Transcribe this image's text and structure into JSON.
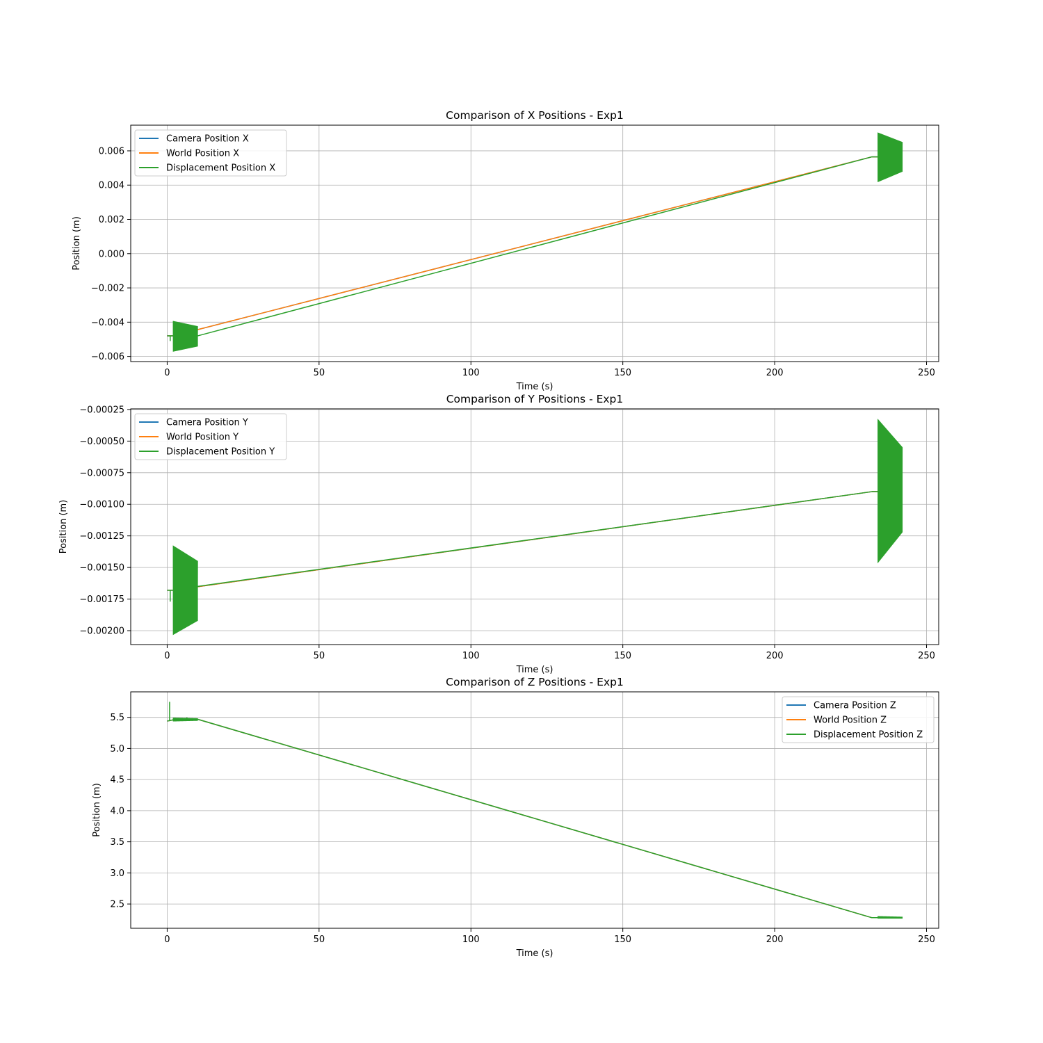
{
  "chart_data": [
    {
      "type": "line",
      "title": "Comparison of X Positions - Exp1",
      "xlabel": "Time (s)",
      "ylabel": "Position (m)",
      "xlim": [
        -12,
        254
      ],
      "ylim": [
        -0.0063,
        0.0075
      ],
      "xticks": [
        0,
        50,
        100,
        150,
        200,
        250
      ],
      "xtick_labels": [
        "0",
        "50",
        "100",
        "150",
        "200",
        "250"
      ],
      "yticks": [
        -0.006,
        -0.004,
        -0.002,
        0.0,
        0.002,
        0.004,
        0.006
      ],
      "ytick_labels": [
        "−0.006",
        "−0.004",
        "−0.002",
        "0.000",
        "0.002",
        "0.004",
        "0.006"
      ],
      "grid": true,
      "legend_position": "upper-left",
      "series": [
        {
          "name": "Camera Position X",
          "color": "#1f77b4",
          "x": [
            0,
            2,
            232,
            234,
            242
          ],
          "y": [
            -0.0048,
            -0.0048,
            0.00565,
            0.00565,
            0.00565
          ]
        },
        {
          "name": "World Position X",
          "color": "#ff7f0e",
          "x": [
            0,
            2,
            232,
            234,
            242
          ],
          "y": [
            -0.0048,
            -0.0048,
            0.00565,
            0.00565,
            0.00565
          ]
        },
        {
          "name": "Displacement Position X",
          "color": "#2ca02c",
          "x": [
            0,
            2,
            10,
            232,
            234,
            242
          ],
          "y": [
            -0.0048,
            -0.0048,
            -0.0048,
            0.00565,
            0.00565,
            0.00565
          ],
          "oscillations": [
            {
              "t_start": 2,
              "t_end": 10,
              "upper": [
                -0.00395,
                -0.00425
              ],
              "lower": [
                -0.0057,
                -0.0054
              ]
            },
            {
              "t_start": 234,
              "t_end": 242,
              "upper": [
                0.00705,
                0.0065
              ],
              "lower": [
                0.0042,
                0.0048
              ]
            }
          ],
          "spikes": [
            {
              "t": 1,
              "low": -0.0051,
              "high": -0.0048
            }
          ]
        }
      ]
    },
    {
      "type": "line",
      "title": "Comparison of Y Positions - Exp1",
      "xlabel": "Time (s)",
      "ylabel": "Position (m)",
      "xlim": [
        -12,
        254
      ],
      "ylim": [
        -0.00211,
        -0.000245
      ],
      "xticks": [
        0,
        50,
        100,
        150,
        200,
        250
      ],
      "xtick_labels": [
        "0",
        "50",
        "100",
        "150",
        "200",
        "250"
      ],
      "yticks": [
        -0.002,
        -0.00175,
        -0.0015,
        -0.00125,
        -0.001,
        -0.00075,
        -0.0005,
        -0.00025
      ],
      "ytick_labels": [
        "−0.00200",
        "−0.00175",
        "−0.00150",
        "−0.00125",
        "−0.00100",
        "−0.00075",
        "−0.00050",
        "−0.00025"
      ],
      "grid": true,
      "legend_position": "upper-left",
      "series": [
        {
          "name": "Camera Position Y",
          "color": "#1f77b4",
          "x": [
            0,
            2,
            232,
            234,
            242
          ],
          "y": [
            -0.00168,
            -0.00168,
            -0.0009,
            -0.0009,
            -0.0009
          ]
        },
        {
          "name": "World Position Y",
          "color": "#ff7f0e",
          "x": [
            0,
            2,
            232,
            234,
            242
          ],
          "y": [
            -0.00168,
            -0.00168,
            -0.0009,
            -0.0009,
            -0.0009
          ]
        },
        {
          "name": "Displacement Position Y",
          "color": "#2ca02c",
          "x": [
            0,
            2,
            10,
            232,
            234,
            242
          ],
          "y": [
            -0.00168,
            -0.00168,
            -0.00165,
            -0.0009,
            -0.0009,
            -0.0009
          ],
          "oscillations": [
            {
              "t_start": 2,
              "t_end": 10,
              "upper": [
                -0.00133,
                -0.00145
              ],
              "lower": [
                -0.00203,
                -0.00192
              ]
            },
            {
              "t_start": 234,
              "t_end": 242,
              "upper": [
                -0.00033,
                -0.00055
              ],
              "lower": [
                -0.00146,
                -0.00122
              ]
            }
          ],
          "spikes": [
            {
              "t": 1,
              "low": -0.00177,
              "high": -0.00168
            }
          ]
        }
      ]
    },
    {
      "type": "line",
      "title": "Comparison of Z Positions - Exp1",
      "xlabel": "Time (s)",
      "ylabel": "Position (m)",
      "xlim": [
        -12,
        254
      ],
      "ylim": [
        2.11,
        5.91
      ],
      "xticks": [
        0,
        50,
        100,
        150,
        200,
        250
      ],
      "xtick_labels": [
        "0",
        "50",
        "100",
        "150",
        "200",
        "250"
      ],
      "yticks": [
        2.5,
        3.0,
        3.5,
        4.0,
        4.5,
        5.0,
        5.5
      ],
      "ytick_labels": [
        "2.5",
        "3.0",
        "3.5",
        "4.0",
        "4.5",
        "5.0",
        "5.5"
      ],
      "grid": true,
      "legend_position": "upper-right",
      "series": [
        {
          "name": "Camera Position Z",
          "color": "#1f77b4",
          "x": [
            0,
            2,
            10,
            232,
            234,
            242
          ],
          "y": [
            5.44,
            5.46,
            5.47,
            2.28,
            2.28,
            2.28
          ]
        },
        {
          "name": "World Position Z",
          "color": "#ff7f0e",
          "x": [
            0,
            2,
            10,
            232,
            234,
            242
          ],
          "y": [
            5.44,
            5.46,
            5.47,
            2.28,
            2.28,
            2.28
          ]
        },
        {
          "name": "Displacement Position Z",
          "color": "#2ca02c",
          "x": [
            0,
            2,
            10,
            232,
            234,
            242
          ],
          "y": [
            5.44,
            5.46,
            5.47,
            2.28,
            2.28,
            2.28
          ],
          "oscillations": [
            {
              "t_start": 2,
              "t_end": 10,
              "upper": [
                5.49,
                5.48
              ],
              "lower": [
                5.44,
                5.45
              ]
            },
            {
              "t_start": 234,
              "t_end": 242,
              "upper": [
                2.3,
                2.29
              ],
              "lower": [
                2.27,
                2.27
              ]
            }
          ],
          "spikes": [
            {
              "t": 0.8,
              "low": 5.44,
              "high": 5.75
            },
            {
              "t": 6.5,
              "low": 5.46,
              "high": 5.5
            }
          ]
        }
      ]
    }
  ]
}
